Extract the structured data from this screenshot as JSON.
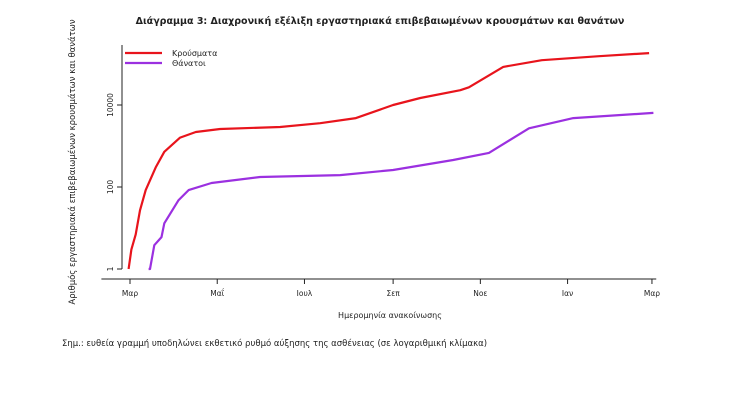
{
  "chart_data": {
    "type": "line",
    "title": "Διάγραμμα 3: Διαχρονική εξέλιξη εργαστηριακά επιβεβαιωμένων κρουσμάτων και θανάτων",
    "xlabel": "Ημερομηνία ανακοίνωσης",
    "ylabel": "Αριθμός εργαστηριακά επιβεβαιωμένων κρουσμάτων και θανάτων",
    "yscale": "log",
    "ylim": [
      0.57,
      290000
    ],
    "xlim": [
      "2020-02-10",
      "2021-03-04"
    ],
    "y_ticks": [
      {
        "value": 1,
        "label": "1"
      },
      {
        "value": 100,
        "label": "100"
      },
      {
        "value": 10000,
        "label": "10000"
      }
    ],
    "x_ticks": [
      {
        "date": "2020-03-01",
        "label": "Μαρ"
      },
      {
        "date": "2020-05-01",
        "label": "Μαΐ"
      },
      {
        "date": "2020-07-01",
        "label": "Ιουλ"
      },
      {
        "date": "2020-09-01",
        "label": "Σεπ"
      },
      {
        "date": "2020-11-01",
        "label": "Νοε"
      },
      {
        "date": "2021-01-01",
        "label": "Ιαν"
      },
      {
        "date": "2021-03-01",
        "label": "Μαρ"
      }
    ],
    "grid": false,
    "legend_position": "top-left",
    "series": [
      {
        "name": "Κρούσματα",
        "color": "#e8141c",
        "points": [
          [
            "2020-02-29",
            1
          ],
          [
            "2020-03-02",
            3
          ],
          [
            "2020-03-05",
            7
          ],
          [
            "2020-03-08",
            27
          ],
          [
            "2020-03-12",
            84
          ],
          [
            "2020-03-19",
            300
          ],
          [
            "2020-03-25",
            720
          ],
          [
            "2020-04-05",
            1600
          ],
          [
            "2020-04-16",
            2200
          ],
          [
            "2020-05-03",
            2600
          ],
          [
            "2020-06-14",
            2900
          ],
          [
            "2020-07-12",
            3600
          ],
          [
            "2020-08-06",
            4800
          ],
          [
            "2020-09-01",
            10000
          ],
          [
            "2020-09-20",
            14800
          ],
          [
            "2020-10-18",
            23000
          ],
          [
            "2020-10-24",
            27000
          ],
          [
            "2020-11-17",
            85000
          ],
          [
            "2020-12-14",
            124000
          ],
          [
            "2021-01-23",
            155000
          ],
          [
            "2021-02-27",
            184000
          ]
        ]
      },
      {
        "name": "Θάνατοι",
        "color": "#9b30e0",
        "points": [
          [
            "2020-03-14",
            1
          ],
          [
            "2020-03-15",
            1
          ],
          [
            "2020-03-18",
            3.8
          ],
          [
            "2020-03-23",
            6
          ],
          [
            "2020-03-25",
            13
          ],
          [
            "2020-04-04",
            48
          ],
          [
            "2020-04-11",
            84
          ],
          [
            "2020-04-27",
            125
          ],
          [
            "2020-05-31",
            175
          ],
          [
            "2020-07-26",
            195
          ],
          [
            "2020-09-01",
            260
          ],
          [
            "2020-10-13",
            455
          ],
          [
            "2020-11-07",
            680
          ],
          [
            "2020-12-05",
            2700
          ],
          [
            "2021-01-05",
            4800
          ],
          [
            "2021-03-02",
            6400
          ]
        ]
      }
    ]
  },
  "footnote": "Σημ.: ευθεία γραμμή υποδηλώνει εκθετικό ρυθμό αύξησης της ασθένειας (σε λογαριθμική κλίμακα)"
}
